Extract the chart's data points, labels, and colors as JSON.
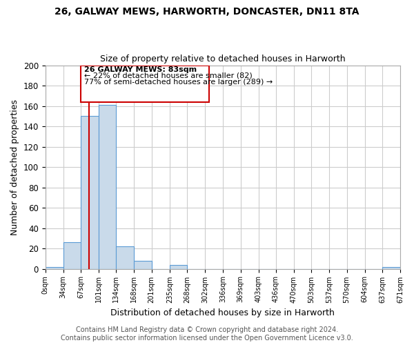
{
  "title_line1": "26, GALWAY MEWS, HARWORTH, DONCASTER, DN11 8TA",
  "title_line2": "Size of property relative to detached houses in Harworth",
  "xlabel": "Distribution of detached houses by size in Harworth",
  "ylabel": "Number of detached properties",
  "bar_edges": [
    0,
    34,
    67,
    101,
    134,
    168,
    201,
    235,
    268,
    302,
    336,
    369,
    403,
    436,
    470,
    503,
    537,
    570,
    604,
    637,
    671
  ],
  "bar_heights": [
    2,
    26,
    150,
    161,
    22,
    8,
    0,
    4,
    0,
    0,
    0,
    0,
    0,
    0,
    0,
    0,
    0,
    0,
    0,
    2
  ],
  "bar_color": "#c9daea",
  "bar_edgecolor": "#5b9bd5",
  "bar_linewidth": 0.8,
  "vline_x": 83,
  "vline_color": "#cc0000",
  "vline_linewidth": 1.5,
  "annotation_line1": "26 GALWAY MEWS: 83sqm",
  "annotation_line2": "← 22% of detached houses are smaller (82)",
  "annotation_line3": "77% of semi-detached houses are larger (289) →",
  "ylim": [
    0,
    200
  ],
  "yticks": [
    0,
    20,
    40,
    60,
    80,
    100,
    120,
    140,
    160,
    180,
    200
  ],
  "tick_labels": [
    "0sqm",
    "34sqm",
    "67sqm",
    "101sqm",
    "134sqm",
    "168sqm",
    "201sqm",
    "235sqm",
    "268sqm",
    "302sqm",
    "336sqm",
    "369sqm",
    "403sqm",
    "436sqm",
    "470sqm",
    "503sqm",
    "537sqm",
    "570sqm",
    "604sqm",
    "637sqm",
    "671sqm"
  ],
  "footer_line1": "Contains HM Land Registry data © Crown copyright and database right 2024.",
  "footer_line2": "Contains public sector information licensed under the Open Government Licence v3.0.",
  "bg_color": "#ffffff",
  "plot_bg_color": "#ffffff",
  "grid_color": "#cccccc",
  "title_fontsize": 10,
  "subtitle_fontsize": 9,
  "footer_fontsize": 7
}
